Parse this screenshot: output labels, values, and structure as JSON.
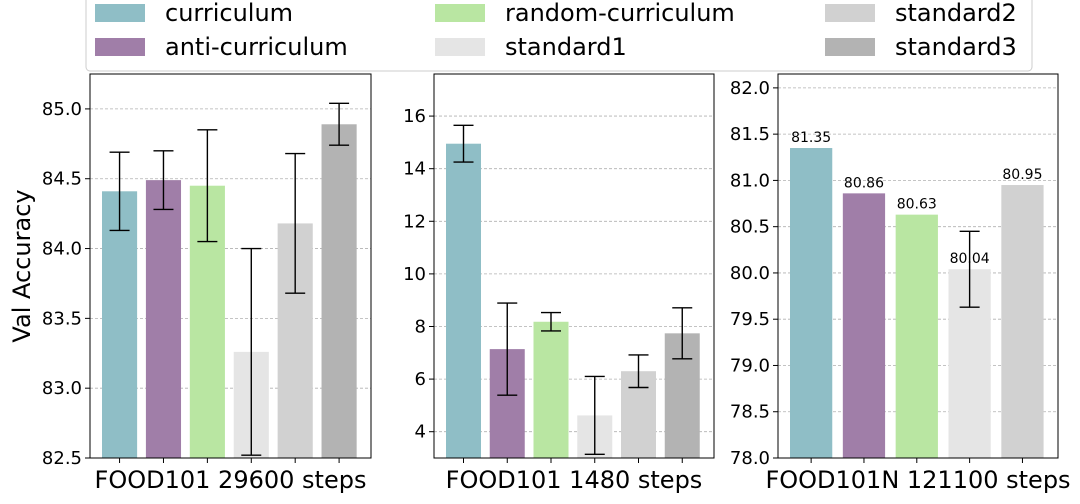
{
  "legend": {
    "entries": [
      {
        "label": "curriculum",
        "color": "#8fbec6"
      },
      {
        "label": "anti-curriculum",
        "color": "#a07ea8"
      },
      {
        "label": "random-curriculum",
        "color": "#b9e6a2"
      },
      {
        "label": "standard1",
        "color": "#e5e5e5"
      },
      {
        "label": "standard2",
        "color": "#d1d1d1"
      },
      {
        "label": "standard3",
        "color": "#b3b3b3"
      }
    ]
  },
  "chart_data": [
    {
      "type": "bar",
      "xlabel": "FOOD101 29600 steps",
      "ylabel": "Val Accuracy",
      "ylim": [
        82.5,
        85.25
      ],
      "yticks": [
        "82.5",
        "83.0",
        "83.5",
        "84.0",
        "84.5",
        "85.0"
      ],
      "grid": true,
      "series": [
        {
          "name": "curriculum",
          "value": 84.41,
          "error": 0.28
        },
        {
          "name": "anti-curriculum",
          "value": 84.49,
          "error": 0.21
        },
        {
          "name": "random-curriculum",
          "value": 84.45,
          "error": 0.4
        },
        {
          "name": "standard1",
          "value": 83.26,
          "error": 0.74
        },
        {
          "name": "standard2",
          "value": 84.18,
          "error": 0.5
        },
        {
          "name": "standard3",
          "value": 84.89,
          "error": 0.15
        }
      ]
    },
    {
      "type": "bar",
      "xlabel": "FOOD101 1480 steps",
      "ylabel": "",
      "ylim": [
        3.0,
        17.6
      ],
      "yticks": [
        "4",
        "6",
        "8",
        "10",
        "12",
        "14",
        "16"
      ],
      "grid": true,
      "series": [
        {
          "name": "curriculum",
          "value": 14.95,
          "error": 0.7
        },
        {
          "name": "anti-curriculum",
          "value": 7.14,
          "error": 1.75
        },
        {
          "name": "random-curriculum",
          "value": 8.18,
          "error": 0.35
        },
        {
          "name": "standard1",
          "value": 4.62,
          "error": 1.48
        },
        {
          "name": "standard2",
          "value": 6.3,
          "error": 0.62
        },
        {
          "name": "standard3",
          "value": 7.74,
          "error": 0.97
        }
      ]
    },
    {
      "type": "bar",
      "xlabel": "FOOD101N 121100 steps",
      "ylabel": "",
      "ylim": [
        78.0,
        82.15
      ],
      "yticks": [
        "78.0",
        "78.5",
        "79.0",
        "79.5",
        "80.0",
        "80.5",
        "81.0",
        "81.5",
        "82.0"
      ],
      "grid": true,
      "series": [
        {
          "name": "curriculum",
          "value": 81.35,
          "label": "81.35",
          "error": null
        },
        {
          "name": "anti-curriculum",
          "value": 80.86,
          "label": "80.86",
          "error": null
        },
        {
          "name": "random-curriculum",
          "value": 80.63,
          "label": "80.63",
          "error": null
        },
        {
          "name": "standard1",
          "value": 80.04,
          "label": "80.04",
          "error": 0.41
        },
        {
          "name": "standard2",
          "value": 80.95,
          "label": "80.95",
          "error": null
        }
      ]
    }
  ]
}
